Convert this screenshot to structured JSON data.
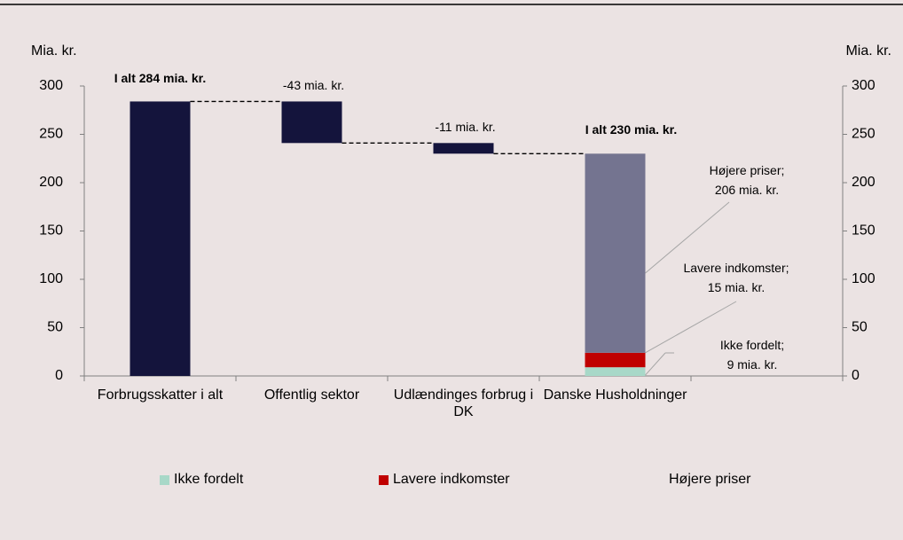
{
  "chart_data": {
    "type": "waterfall",
    "ylabel": "Mia. kr.",
    "y2label": "Mia. kr.",
    "categories": [
      "Forbrugsskatter i alt",
      "Offentlig sektor",
      "Udlændinges forbrug i DK",
      "Danske Husholdninger",
      null
    ],
    "steps": {
      "color": "#14143c",
      "values": [
        284,
        -43,
        -11,
        null,
        null
      ],
      "value_labels": [
        "I alt 284 mia. kr.",
        "-43 mia. kr.",
        "-11 mia. kr.",
        null,
        null
      ]
    },
    "total_label": "I alt 230 mia. kr.",
    "series": [
      {
        "name": "Ikke fordelt",
        "color": "#a8d8c8",
        "values": [
          null,
          null,
          null,
          9,
          null
        ],
        "value_labels": [
          null,
          null,
          null,
          "Ikke fordelt; 9 mia. kr.",
          null
        ],
        "legend_swatch": true
      },
      {
        "name": "Lavere indkomster",
        "color": "#c00000",
        "values": [
          null,
          null,
          null,
          15,
          null
        ],
        "value_labels": [
          null,
          null,
          null,
          "Lavere indkomster; 15 mia. kr.",
          null
        ],
        "legend_swatch": true
      },
      {
        "name": "Højere priser",
        "color": "#747490",
        "values": [
          null,
          null,
          null,
          206,
          null
        ],
        "value_labels": [
          null,
          null,
          null,
          "Højere priser; 206 mia. kr.",
          null
        ],
        "legend_swatch": false
      }
    ],
    "ylim": [
      0,
      300
    ],
    "yticks": [
      0,
      50,
      100,
      150,
      200,
      250,
      300
    ],
    "y2lim": [
      0,
      300
    ],
    "y2ticks": [
      0,
      50,
      100,
      150,
      200,
      250,
      300
    ],
    "grid": false
  }
}
